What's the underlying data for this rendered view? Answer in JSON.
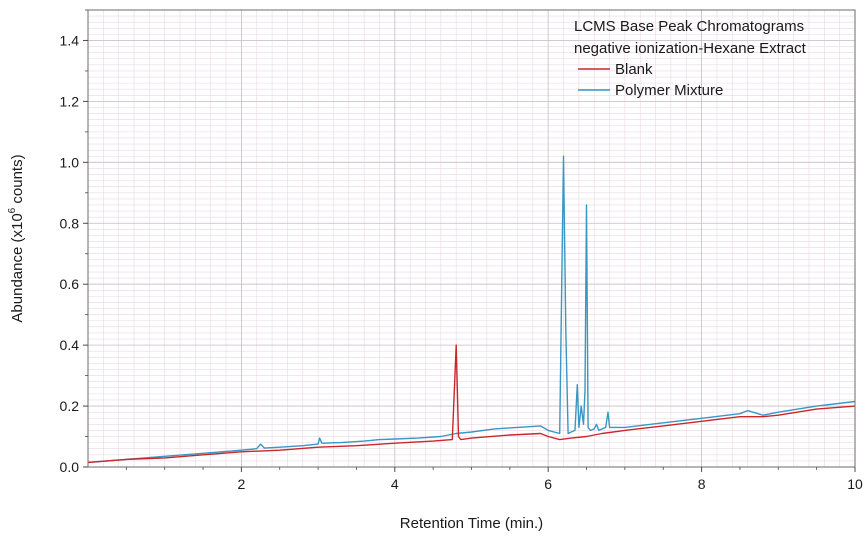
{
  "chart_data": {
    "type": "line",
    "title_lines": [
      "LCMS Base Peak Chromatograms",
      "negative ionization-Hexane Extract"
    ],
    "xlabel": "Retention Time (min.)",
    "ylabel": {
      "prefix": "Abundance (x10",
      "superscript": "6",
      "suffix": " counts)"
    },
    "xlim": [
      0,
      10
    ],
    "ylim": [
      0,
      1.5
    ],
    "x_ticks": [
      2,
      4,
      6,
      8,
      10
    ],
    "x_tick_labels": [
      "2",
      "4",
      "6",
      "8",
      "10"
    ],
    "y_ticks": [
      0,
      0.2,
      0.4,
      0.6,
      0.8,
      1.0,
      1.2,
      1.4
    ],
    "y_tick_labels": [
      "0.0",
      "0.2",
      "0.4",
      "0.6",
      "0.8",
      "1.0",
      "1.2",
      "1.4"
    ],
    "grid": "on",
    "legend_position": "top-right",
    "series": [
      {
        "name": "Polymer Mixture",
        "color": "#3a96c2",
        "x": [
          0.0,
          0.5,
          1.0,
          1.5,
          2.0,
          2.2,
          2.25,
          2.3,
          2.5,
          2.8,
          3.0,
          3.02,
          3.05,
          3.3,
          3.6,
          3.8,
          4.0,
          4.3,
          4.6,
          4.8,
          5.0,
          5.3,
          5.6,
          5.9,
          6.0,
          6.15,
          6.2,
          6.23,
          6.26,
          6.3,
          6.35,
          6.38,
          6.4,
          6.43,
          6.46,
          6.48,
          6.5,
          6.52,
          6.55,
          6.6,
          6.63,
          6.66,
          6.75,
          6.78,
          6.8,
          7.0,
          7.5,
          8.0,
          8.5,
          8.6,
          8.8,
          9.0,
          9.5,
          10.0
        ],
        "y": [
          0.015,
          0.025,
          0.035,
          0.045,
          0.055,
          0.06,
          0.075,
          0.062,
          0.065,
          0.07,
          0.075,
          0.095,
          0.078,
          0.08,
          0.085,
          0.09,
          0.092,
          0.095,
          0.1,
          0.11,
          0.115,
          0.125,
          0.13,
          0.135,
          0.12,
          0.11,
          1.02,
          0.45,
          0.11,
          0.115,
          0.12,
          0.27,
          0.13,
          0.2,
          0.14,
          0.25,
          0.86,
          0.13,
          0.12,
          0.125,
          0.14,
          0.12,
          0.13,
          0.18,
          0.13,
          0.13,
          0.145,
          0.16,
          0.175,
          0.185,
          0.17,
          0.18,
          0.2,
          0.215
        ]
      },
      {
        "name": "Blank",
        "color": "#c8282a",
        "x": [
          0.0,
          0.5,
          1.0,
          1.5,
          2.0,
          2.5,
          3.0,
          3.5,
          4.0,
          4.5,
          4.75,
          4.8,
          4.83,
          4.86,
          5.0,
          5.5,
          5.9,
          6.0,
          6.15,
          6.3,
          6.5,
          6.7,
          7.0,
          7.5,
          8.0,
          8.5,
          8.8,
          9.0,
          9.5,
          10.0
        ],
        "y": [
          0.015,
          0.025,
          0.03,
          0.04,
          0.05,
          0.055,
          0.065,
          0.07,
          0.078,
          0.085,
          0.09,
          0.4,
          0.1,
          0.09,
          0.095,
          0.105,
          0.11,
          0.1,
          0.09,
          0.095,
          0.1,
          0.11,
          0.12,
          0.135,
          0.15,
          0.165,
          0.165,
          0.17,
          0.19,
          0.2
        ]
      }
    ]
  }
}
